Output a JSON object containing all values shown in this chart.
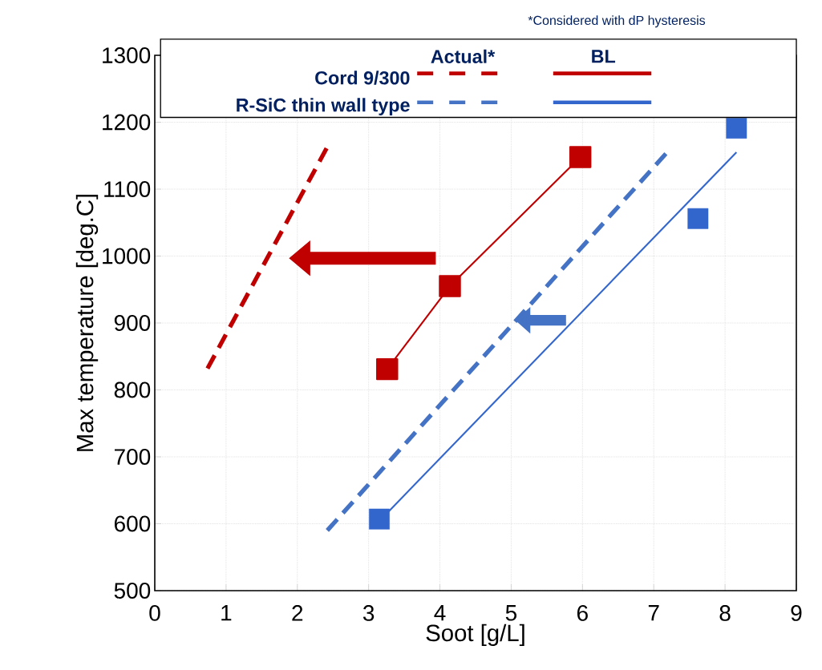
{
  "chart_data": {
    "type": "line",
    "xlabel": "Soot [g/L]",
    "ylabel": "Max temperature [deg.C]",
    "xlim": [
      0,
      9
    ],
    "xticks": [
      0,
      1,
      2,
      3,
      4,
      5,
      6,
      7,
      8,
      9
    ],
    "ylim": [
      500,
      1300
    ],
    "yticks": [
      500,
      600,
      700,
      800,
      900,
      1000,
      1100,
      1200,
      1300
    ],
    "grid": true,
    "legend": "top",
    "annotations": [
      "Actual*",
      "BL",
      "*Considered with dP hysteresis"
    ],
    "series": [
      {
        "name": "Cord 9/300",
        "line_style": "dashed",
        "marker": "none",
        "color": "#c00000",
        "x": [
          0.74,
          2.41
        ],
        "values": [
          832,
          1161
        ]
      },
      {
        "line_style": "solid",
        "marker": "square",
        "color": "#c00000",
        "x": [
          3.26,
          4.14,
          5.97
        ],
        "values": [
          831,
          955,
          1148
        ]
      },
      {
        "name": "R-SiC thin wall type",
        "line_style": "dashed",
        "marker": "none",
        "color": "#4472c4",
        "x": [
          2.42,
          7.17
        ],
        "values": [
          590,
          1153
        ]
      },
      {
        "line_style": "solid",
        "marker": "none",
        "color": "#3366cc",
        "x": [
          3.15,
          8.16
        ],
        "values": [
          604,
          1155
        ]
      },
      {
        "type": "scatter",
        "marker": "square",
        "color": "#3366cc",
        "x": [
          3.15,
          7.62,
          8.16
        ],
        "values": [
          607,
          1056,
          1191
        ]
      }
    ]
  }
}
